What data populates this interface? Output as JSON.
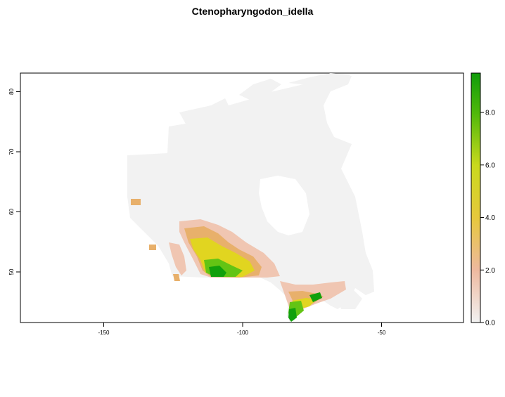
{
  "title": "Ctenopharyngodon_idella",
  "map": {
    "x_axis": {
      "ticks": [
        -150,
        -100,
        -50
      ],
      "labels": [
        "-150",
        "-100",
        "-50"
      ]
    },
    "y_axis": {
      "ticks": [
        50,
        60,
        70,
        80
      ],
      "labels": [
        "50",
        "60",
        "70",
        "80"
      ]
    }
  },
  "legend": {
    "ticks": [
      0,
      2,
      4,
      6,
      8
    ],
    "labels": [
      "0.0",
      "2.0",
      "4.0",
      "6.0",
      "8.0"
    ],
    "colors": [
      "#f2f2f2",
      "#eeb99f",
      "#e6c83c",
      "#5fbd0a",
      "#109c0a"
    ]
  },
  "colors": {
    "land": "#f2f2f2",
    "low": "#f0c6b2",
    "medium": "#e8b06b",
    "high": "#e1d520",
    "very_high": "#63c414",
    "max": "#11a00c"
  }
}
